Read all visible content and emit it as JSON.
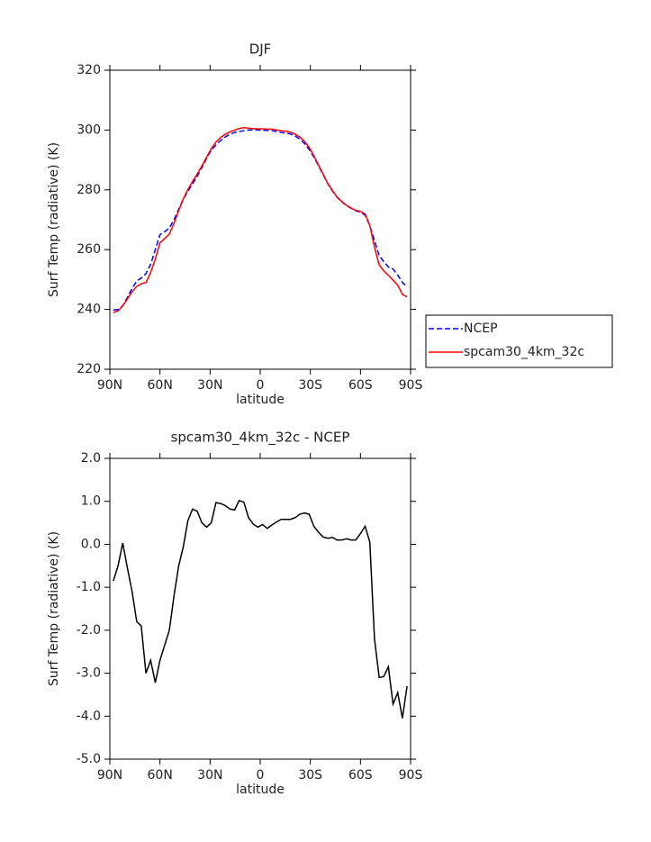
{
  "chart_data": [
    {
      "type": "line",
      "title": "DJF",
      "xlabel": "latitude",
      "ylabel": "Surf Temp (radiative) (K)",
      "x": [
        87.9,
        85.1,
        82.3,
        79.5,
        76.7,
        73.9,
        71.2,
        68.4,
        65.6,
        62.8,
        60.0,
        57.2,
        54.4,
        51.6,
        48.8,
        46.0,
        43.3,
        40.5,
        37.7,
        34.9,
        32.1,
        29.3,
        26.5,
        23.7,
        20.9,
        18.1,
        15.3,
        12.6,
        9.8,
        7.0,
        4.2,
        1.4,
        -1.4,
        -4.2,
        -7.0,
        -9.8,
        -12.6,
        -15.3,
        -18.1,
        -20.9,
        -23.7,
        -26.5,
        -29.3,
        -32.1,
        -34.9,
        -37.7,
        -40.5,
        -43.3,
        -46.0,
        -48.8,
        -51.6,
        -54.4,
        -57.2,
        -60.0,
        -62.8,
        -65.6,
        -68.4,
        -71.2,
        -73.9,
        -76.7,
        -79.5,
        -82.3,
        -85.1,
        -87.9
      ],
      "series": [
        {
          "name": "NCEP",
          "color": "#0000ff",
          "dashed": true,
          "values": [
            239.8,
            240,
            241.2,
            244,
            247,
            249.5,
            250.5,
            252,
            255,
            260,
            265,
            266,
            267.2,
            270,
            273.5,
            277,
            279.5,
            282,
            284.5,
            287.5,
            290.5,
            293.3,
            295,
            296.5,
            297.7,
            298.6,
            299.2,
            299.5,
            299.8,
            300,
            300,
            300,
            299.9,
            299.9,
            299.8,
            299.5,
            299.2,
            299,
            298.7,
            298,
            297,
            295.5,
            293.5,
            291,
            288,
            285,
            282,
            279.5,
            277.5,
            276,
            274.7,
            273.8,
            273,
            272.5,
            271.5,
            268,
            263,
            258,
            256,
            254.2,
            253.5,
            251.5,
            249,
            247.5
          ]
        },
        {
          "name": "spcam30_4km_32c",
          "color": "#ff0000",
          "dashed": false,
          "values": [
            239.0,
            239.5,
            241.2,
            243.5,
            245.9,
            247.7,
            248.6,
            249.0,
            252.3,
            256.8,
            262.3,
            263.7,
            265.2,
            268.8,
            273.0,
            277.0,
            280.1,
            282.8,
            285.3,
            288.0,
            290.9,
            293.8,
            296.0,
            297.5,
            298.6,
            299.4,
            300.0,
            300.5,
            300.8,
            300.6,
            300.5,
            300.4,
            300.4,
            300.3,
            300.3,
            300.0,
            299.8,
            299.6,
            299.3,
            298.6,
            297.7,
            296.2,
            294.2,
            291.4,
            288.3,
            285.2,
            282.1,
            279.7,
            277.6,
            276.1,
            274.8,
            273.9,
            273.1,
            272.8,
            271.9,
            268.1,
            260.8,
            254.9,
            252.9,
            251.4,
            249.8,
            248.1,
            245.0,
            244.2
          ]
        }
      ],
      "xlim": [
        90,
        -90
      ],
      "xticks": [
        {
          "value": 90,
          "label": "90N"
        },
        {
          "value": 60,
          "label": "60N"
        },
        {
          "value": 30,
          "label": "30N"
        },
        0,
        {
          "value": -30,
          "label": "30S"
        },
        {
          "value": -60,
          "label": "60S"
        },
        {
          "value": -90,
          "label": "90S"
        }
      ],
      "ylim": [
        220,
        320
      ],
      "yticks": [
        220,
        240,
        260,
        280,
        300,
        320
      ],
      "legend": "right"
    },
    {
      "type": "line",
      "title": "spcam30_4km_32c - NCEP",
      "xlabel": "latitude",
      "ylabel": "Surf Temp (radiative) (K)",
      "x": [
        87.9,
        85.1,
        82.3,
        79.5,
        76.7,
        73.9,
        71.2,
        68.4,
        65.6,
        62.8,
        60.0,
        57.2,
        54.4,
        51.6,
        48.8,
        46.0,
        43.3,
        40.5,
        37.7,
        34.9,
        32.1,
        29.3,
        26.5,
        23.7,
        20.9,
        18.1,
        15.3,
        12.6,
        9.8,
        7.0,
        4.2,
        1.4,
        -1.4,
        -4.2,
        -7.0,
        -9.8,
        -12.6,
        -15.3,
        -18.1,
        -20.9,
        -23.7,
        -26.5,
        -29.3,
        -32.1,
        -34.9,
        -37.7,
        -40.5,
        -43.3,
        -46.0,
        -48.8,
        -51.6,
        -54.4,
        -57.2,
        -60.0,
        -62.8,
        -65.6,
        -68.4,
        -71.2,
        -73.9,
        -76.7,
        -79.5,
        -82.3,
        -85.1,
        -87.9
      ],
      "color": "#000000",
      "values": [
        -0.85,
        -0.5,
        0.03,
        -0.55,
        -1.1,
        -1.8,
        -1.9,
        -3.0,
        -2.7,
        -3.22,
        -2.7,
        -2.35,
        -2.0,
        -1.2,
        -0.5,
        -0.05,
        0.55,
        0.82,
        0.77,
        0.5,
        0.4,
        0.5,
        0.97,
        0.95,
        0.9,
        0.82,
        0.8,
        1.02,
        0.98,
        0.62,
        0.47,
        0.4,
        0.46,
        0.37,
        0.45,
        0.52,
        0.58,
        0.58,
        0.58,
        0.62,
        0.7,
        0.73,
        0.7,
        0.42,
        0.28,
        0.17,
        0.14,
        0.16,
        0.1,
        0.1,
        0.13,
        0.1,
        0.1,
        0.25,
        0.42,
        0.05,
        -2.2,
        -3.1,
        -3.08,
        -2.85,
        -3.72,
        -3.45,
        -4.05,
        -3.3
      ],
      "xlim": [
        90,
        -90
      ],
      "xticks": [
        {
          "value": 90,
          "label": "90N"
        },
        {
          "value": 60,
          "label": "60N"
        },
        {
          "value": 30,
          "label": "30N"
        },
        0,
        {
          "value": -30,
          "label": "30S"
        },
        {
          "value": -60,
          "label": "60S"
        },
        {
          "value": -90,
          "label": "90S"
        }
      ],
      "ylim": [
        -5,
        2
      ],
      "yticks": [
        {
          "value": -5,
          "label": "-5.0"
        },
        {
          "value": -4,
          "label": "-4.0"
        },
        {
          "value": -3,
          "label": "-3.0"
        },
        {
          "value": -2,
          "label": "-2.0"
        },
        {
          "value": -1,
          "label": "-1.0"
        },
        {
          "value": 0,
          "label": "0.0"
        },
        {
          "value": 1,
          "label": "1.0"
        },
        {
          "value": 2,
          "label": "2.0"
        }
      ]
    }
  ]
}
